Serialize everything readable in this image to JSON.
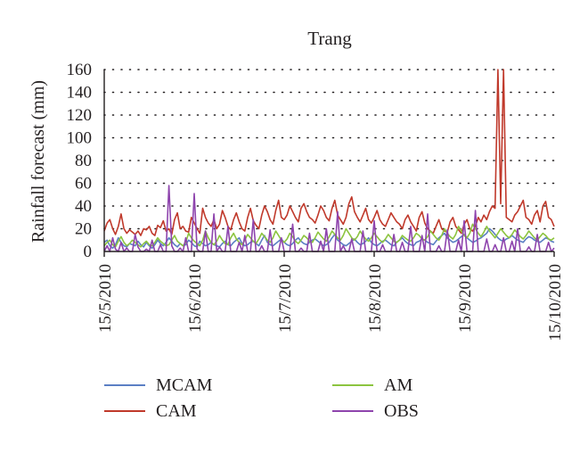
{
  "chart_data": {
    "type": "line",
    "title": "Trang",
    "xlabel": "",
    "ylabel": "Rainfall forecast (mm)",
    "x_start": "15/5/2010",
    "x_end": "15/10/2010",
    "xticks": [
      "15/5/2010",
      "15/6/2010",
      "15/7/2010",
      "15/8/2010",
      "15/9/2010",
      "15/10/2010"
    ],
    "ylim": [
      0,
      160
    ],
    "yticks": [
      "0",
      "20",
      "40",
      "60",
      "80",
      "100",
      "120",
      "140",
      "160"
    ],
    "grid": "dotted horizontal",
    "legend_position": "bottom",
    "series": [
      {
        "name": "MCAM",
        "color": "#5b7fc4",
        "values": [
          8,
          10,
          5,
          3,
          6,
          12,
          8,
          5,
          4,
          7,
          6,
          5,
          9,
          6,
          4,
          8,
          5,
          3,
          6,
          10,
          7,
          5,
          8,
          12,
          9,
          6,
          4,
          7,
          5,
          6,
          10,
          8,
          5,
          4,
          9,
          7,
          5,
          6,
          8,
          6,
          5,
          4,
          7,
          9,
          6,
          5,
          8,
          10,
          12,
          7,
          5,
          6,
          8,
          9,
          7,
          5,
          10,
          14,
          8,
          6,
          5,
          7,
          9,
          11,
          8,
          6,
          5,
          7,
          10,
          12,
          9,
          7,
          6,
          8,
          10,
          11,
          9,
          7,
          5,
          6,
          8,
          12,
          15,
          10,
          8,
          6,
          5,
          7,
          9,
          11,
          8,
          6,
          7,
          9,
          12,
          8,
          6,
          5,
          7,
          9,
          10,
          8,
          6,
          5,
          8,
          10,
          12,
          9,
          7,
          6,
          5,
          8,
          9,
          11,
          10,
          8,
          7,
          6,
          9,
          12,
          14,
          16,
          12,
          10,
          8,
          9,
          11,
          13,
          15,
          12,
          10,
          8,
          9,
          11,
          12,
          14,
          16,
          20,
          18,
          15,
          12,
          10,
          9,
          11,
          12,
          14,
          12,
          10,
          9,
          8,
          11,
          13,
          12,
          10,
          9,
          8,
          10,
          12,
          11,
          9,
          8
        ]
      },
      {
        "name": "CAM",
        "color": "#c0392b",
        "values": [
          18,
          25,
          28,
          20,
          15,
          22,
          33,
          20,
          16,
          19,
          17,
          15,
          18,
          14,
          20,
          19,
          22,
          16,
          14,
          23,
          21,
          27,
          18,
          20,
          15,
          28,
          34,
          20,
          22,
          18,
          17,
          30,
          25,
          20,
          16,
          38,
          30,
          25,
          22,
          28,
          20,
          24,
          36,
          30,
          22,
          19,
          28,
          34,
          26,
          20,
          18,
          30,
          38,
          27,
          23,
          20,
          32,
          40,
          35,
          28,
          24,
          36,
          45,
          30,
          28,
          32,
          40,
          35,
          30,
          26,
          38,
          42,
          35,
          30,
          28,
          25,
          32,
          40,
          36,
          30,
          27,
          38,
          45,
          32,
          28,
          24,
          30,
          42,
          48,
          35,
          30,
          26,
          32,
          38,
          28,
          25,
          30,
          36,
          28,
          24,
          22,
          28,
          34,
          30,
          26,
          24,
          20,
          28,
          32,
          26,
          22,
          18,
          30,
          35,
          25,
          20,
          18,
          16,
          22,
          28,
          20,
          18,
          17,
          26,
          30,
          22,
          19,
          16,
          24,
          28,
          20,
          18,
          22,
          30,
          26,
          32,
          28,
          35,
          40,
          38,
          160,
          42,
          160,
          30,
          28,
          26,
          32,
          35,
          40,
          45,
          30,
          28,
          24,
          32,
          36,
          26,
          40,
          44,
          30,
          28,
          22
        ]
      },
      {
        "name": "AM",
        "color": "#8cc43f",
        "values": [
          5,
          8,
          10,
          6,
          4,
          9,
          13,
          8,
          5,
          7,
          10,
          8,
          6,
          4,
          7,
          9,
          6,
          5,
          8,
          12,
          9,
          7,
          5,
          6,
          10,
          14,
          9,
          7,
          5,
          8,
          16,
          12,
          9,
          7,
          5,
          10,
          18,
          12,
          8,
          6,
          9,
          14,
          10,
          7,
          6,
          12,
          16,
          11,
          8,
          6,
          10,
          15,
          12,
          9,
          7,
          11,
          16,
          13,
          10,
          8,
          12,
          18,
          14,
          10,
          8,
          11,
          16,
          13,
          9,
          7,
          10,
          14,
          12,
          9,
          8,
          12,
          17,
          14,
          11,
          9,
          13,
          18,
          15,
          12,
          10,
          14,
          20,
          16,
          12,
          10,
          13,
          18,
          14,
          11,
          9,
          12,
          16,
          13,
          10,
          8,
          11,
          15,
          12,
          9,
          8,
          10,
          14,
          12,
          10,
          9,
          12,
          16,
          14,
          11,
          10,
          13,
          18,
          15,
          12,
          10,
          14,
          20,
          16,
          13,
          11,
          15,
          22,
          18,
          14,
          12,
          16,
          24,
          20,
          16,
          13,
          17,
          22,
          18,
          15,
          12,
          16,
          20,
          17,
          14,
          12,
          15,
          19,
          16,
          13,
          11,
          14,
          18,
          15,
          12,
          10,
          13,
          16,
          14,
          11,
          10,
          12
        ]
      },
      {
        "name": "OBS",
        "color": "#8e44ad",
        "values": [
          0,
          5,
          0,
          12,
          2,
          0,
          8,
          0,
          3,
          0,
          0,
          15,
          4,
          0,
          0,
          2,
          0,
          10,
          0,
          0,
          6,
          0,
          0,
          58,
          5,
          0,
          0,
          3,
          0,
          12,
          0,
          0,
          51,
          2,
          0,
          0,
          18,
          0,
          0,
          33,
          0,
          4,
          0,
          0,
          22,
          0,
          0,
          0,
          8,
          0,
          14,
          0,
          0,
          28,
          0,
          0,
          5,
          0,
          0,
          19,
          0,
          0,
          0,
          12,
          0,
          0,
          0,
          24,
          0,
          0,
          3,
          0,
          0,
          16,
          0,
          0,
          0,
          9,
          0,
          20,
          0,
          0,
          0,
          35,
          0,
          5,
          0,
          0,
          11,
          0,
          0,
          0,
          18,
          0,
          0,
          0,
          27,
          0,
          0,
          6,
          0,
          0,
          0,
          15,
          0,
          0,
          8,
          0,
          0,
          22,
          0,
          0,
          0,
          14,
          0,
          33,
          0,
          0,
          0,
          5,
          0,
          0,
          19,
          0,
          0,
          0,
          10,
          0,
          27,
          0,
          0,
          0,
          36,
          0,
          0,
          0,
          11,
          0,
          0,
          6,
          0,
          0,
          12,
          0,
          0,
          9,
          0,
          20,
          0,
          0,
          0,
          4,
          0,
          0,
          15,
          0,
          0,
          0,
          8,
          0,
          3
        ]
      }
    ]
  }
}
